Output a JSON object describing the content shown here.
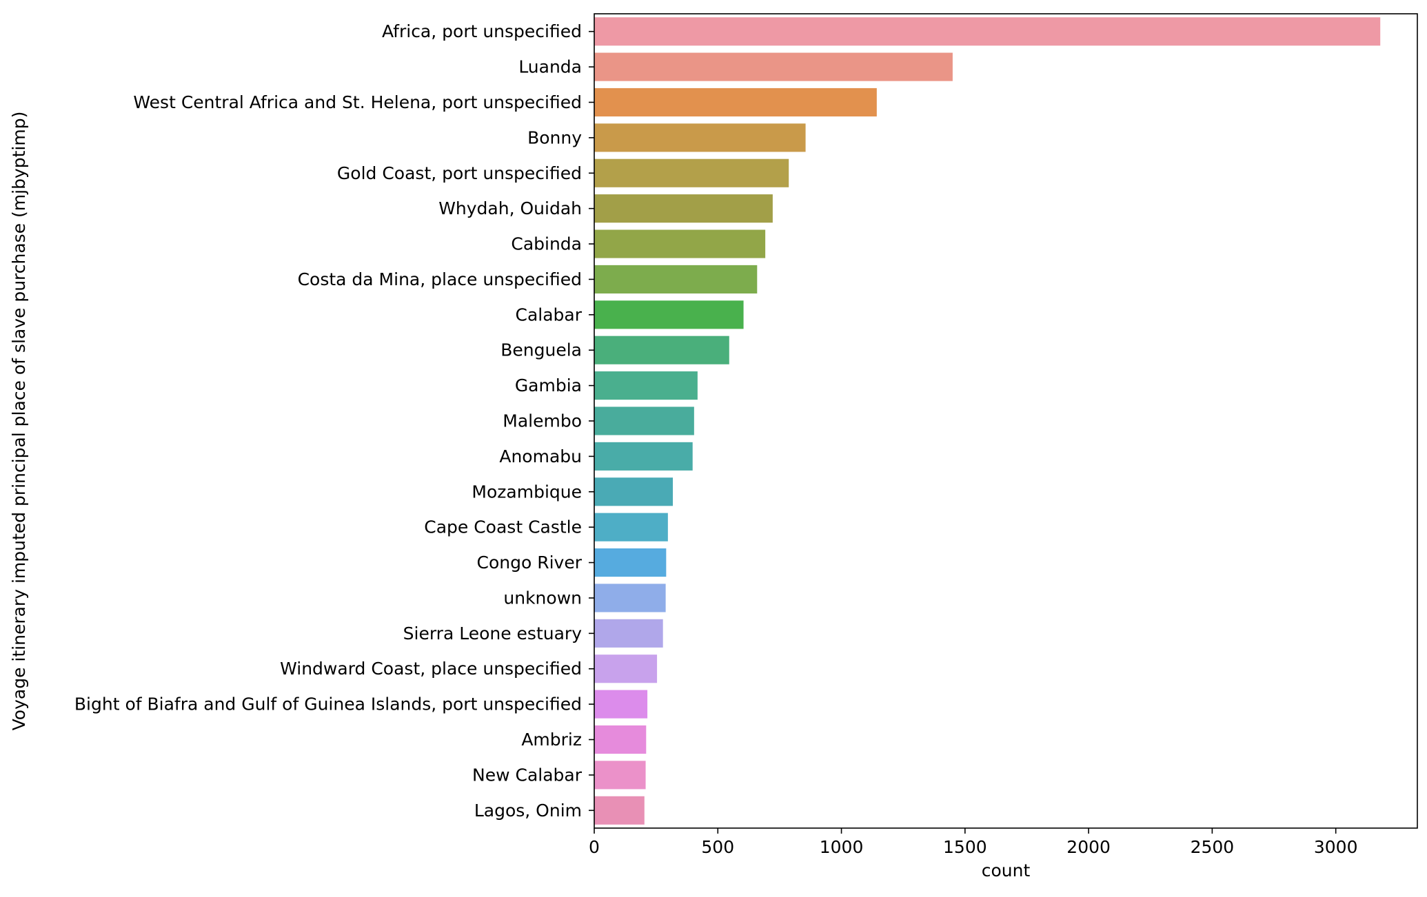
{
  "chart_data": {
    "type": "bar",
    "orientation": "horizontal",
    "xlabel": "count",
    "ylabel": "Voyage itinerary imputed principal place of slave purchase (mjbyptimp)",
    "xlim": [
      0,
      3330
    ],
    "xticks": [
      "0",
      "500",
      "1000",
      "1500",
      "2000",
      "2500",
      "3000"
    ],
    "xtick_values": [
      0,
      500,
      1000,
      1500,
      2000,
      2500,
      3000
    ],
    "grid": false,
    "categories": [
      "Africa, port unspecified",
      "Luanda",
      "West Central Africa and St. Helena, port unspecified",
      "Bonny",
      "Gold Coast, port unspecified",
      "Whydah, Ouidah",
      "Cabinda",
      "Costa da Mina, place unspecified",
      "Calabar",
      "Benguela",
      "Gambia",
      "Malembo",
      "Anomabu",
      "Mozambique",
      "Cape Coast Castle",
      "Congo River",
      "unknown",
      "Sierra Leone estuary",
      "Windward Coast, place unspecified",
      "Bight of Biafra and Gulf of Guinea Islands, port unspecified",
      "Ambriz",
      "New Calabar",
      "Lagos, Onim"
    ],
    "values": [
      3180,
      1450,
      1143,
      855,
      787,
      722,
      692,
      659,
      604,
      546,
      418,
      404,
      398,
      318,
      298,
      291,
      289,
      278,
      254,
      215,
      210,
      208,
      203
    ],
    "colors": [
      "#ee99a5",
      "#ea9587",
      "#e2914e",
      "#c99a4a",
      "#b3a04a",
      "#a29f48",
      "#92a648",
      "#7dac4d",
      "#49b14d",
      "#4aaf7b",
      "#4aaf8e",
      "#49ac9c",
      "#49aca8",
      "#4aaab5",
      "#4eaec6",
      "#56abdf",
      "#8fade9",
      "#b0a7ea",
      "#c8a2ec",
      "#dc8ceb",
      "#e68bdc",
      "#eb91c9",
      "#e890b5"
    ]
  }
}
